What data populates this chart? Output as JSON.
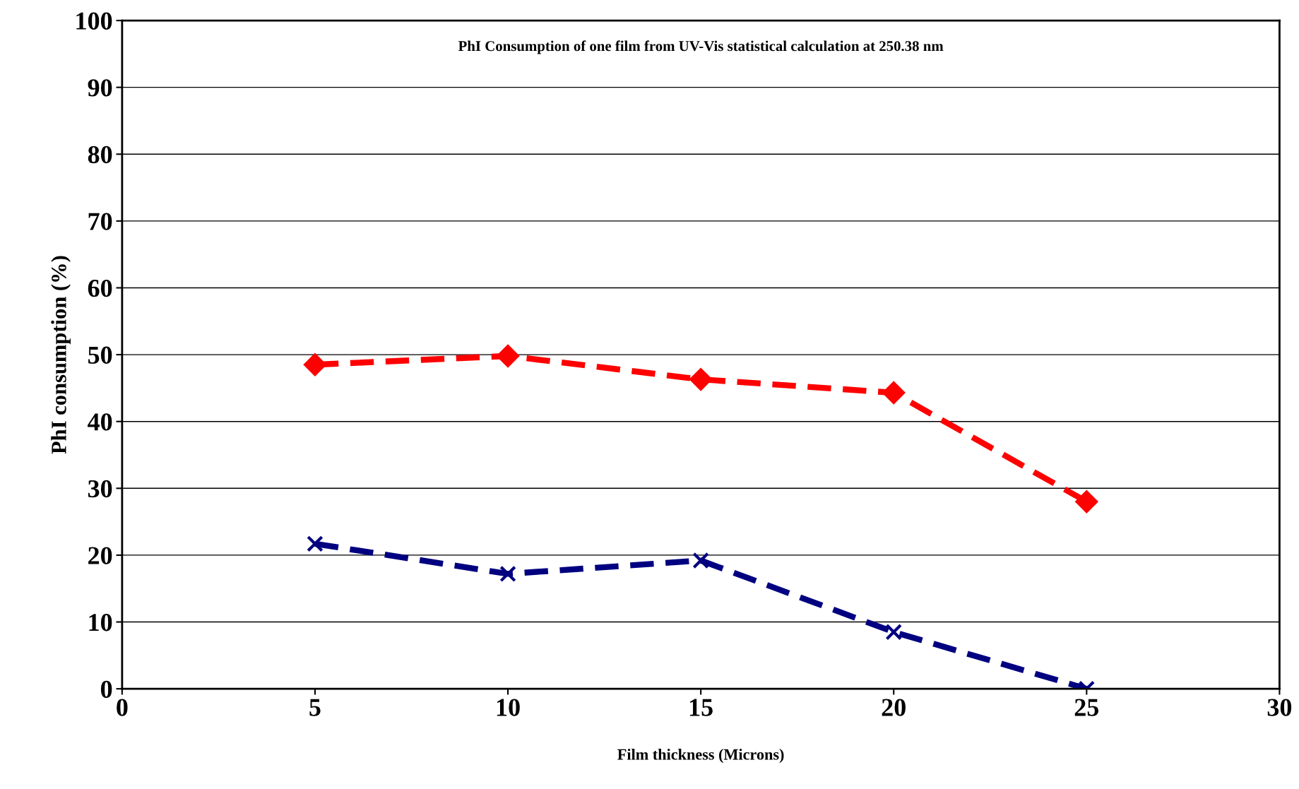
{
  "chart_data": {
    "type": "line",
    "title": "PhI Consumption of one film from UV-Vis statistical calculation at 250.38 nm",
    "xlabel": "Film thickness (Microns)",
    "ylabel": "PhI consumption (%)",
    "x": [
      5,
      10,
      15,
      20,
      25
    ],
    "series": [
      {
        "color": "#ff0000",
        "values": [
          48.5,
          49.8,
          46.3,
          44.3,
          28.0
        ],
        "marker": "diamond",
        "line_style": "dashed"
      },
      {
        "color": "#000080",
        "values": [
          21.7,
          17.2,
          19.2,
          8.5,
          0.0
        ],
        "marker": "cross",
        "line_style": "dashed"
      }
    ],
    "xlim": [
      0,
      30
    ],
    "xticks": [
      0,
      5,
      10,
      15,
      20,
      25,
      30
    ],
    "ylim": [
      0,
      100
    ],
    "yticks": [
      0,
      10,
      20,
      30,
      40,
      50,
      60,
      70,
      80,
      90,
      100
    ],
    "grid": "y",
    "legend": false
  }
}
